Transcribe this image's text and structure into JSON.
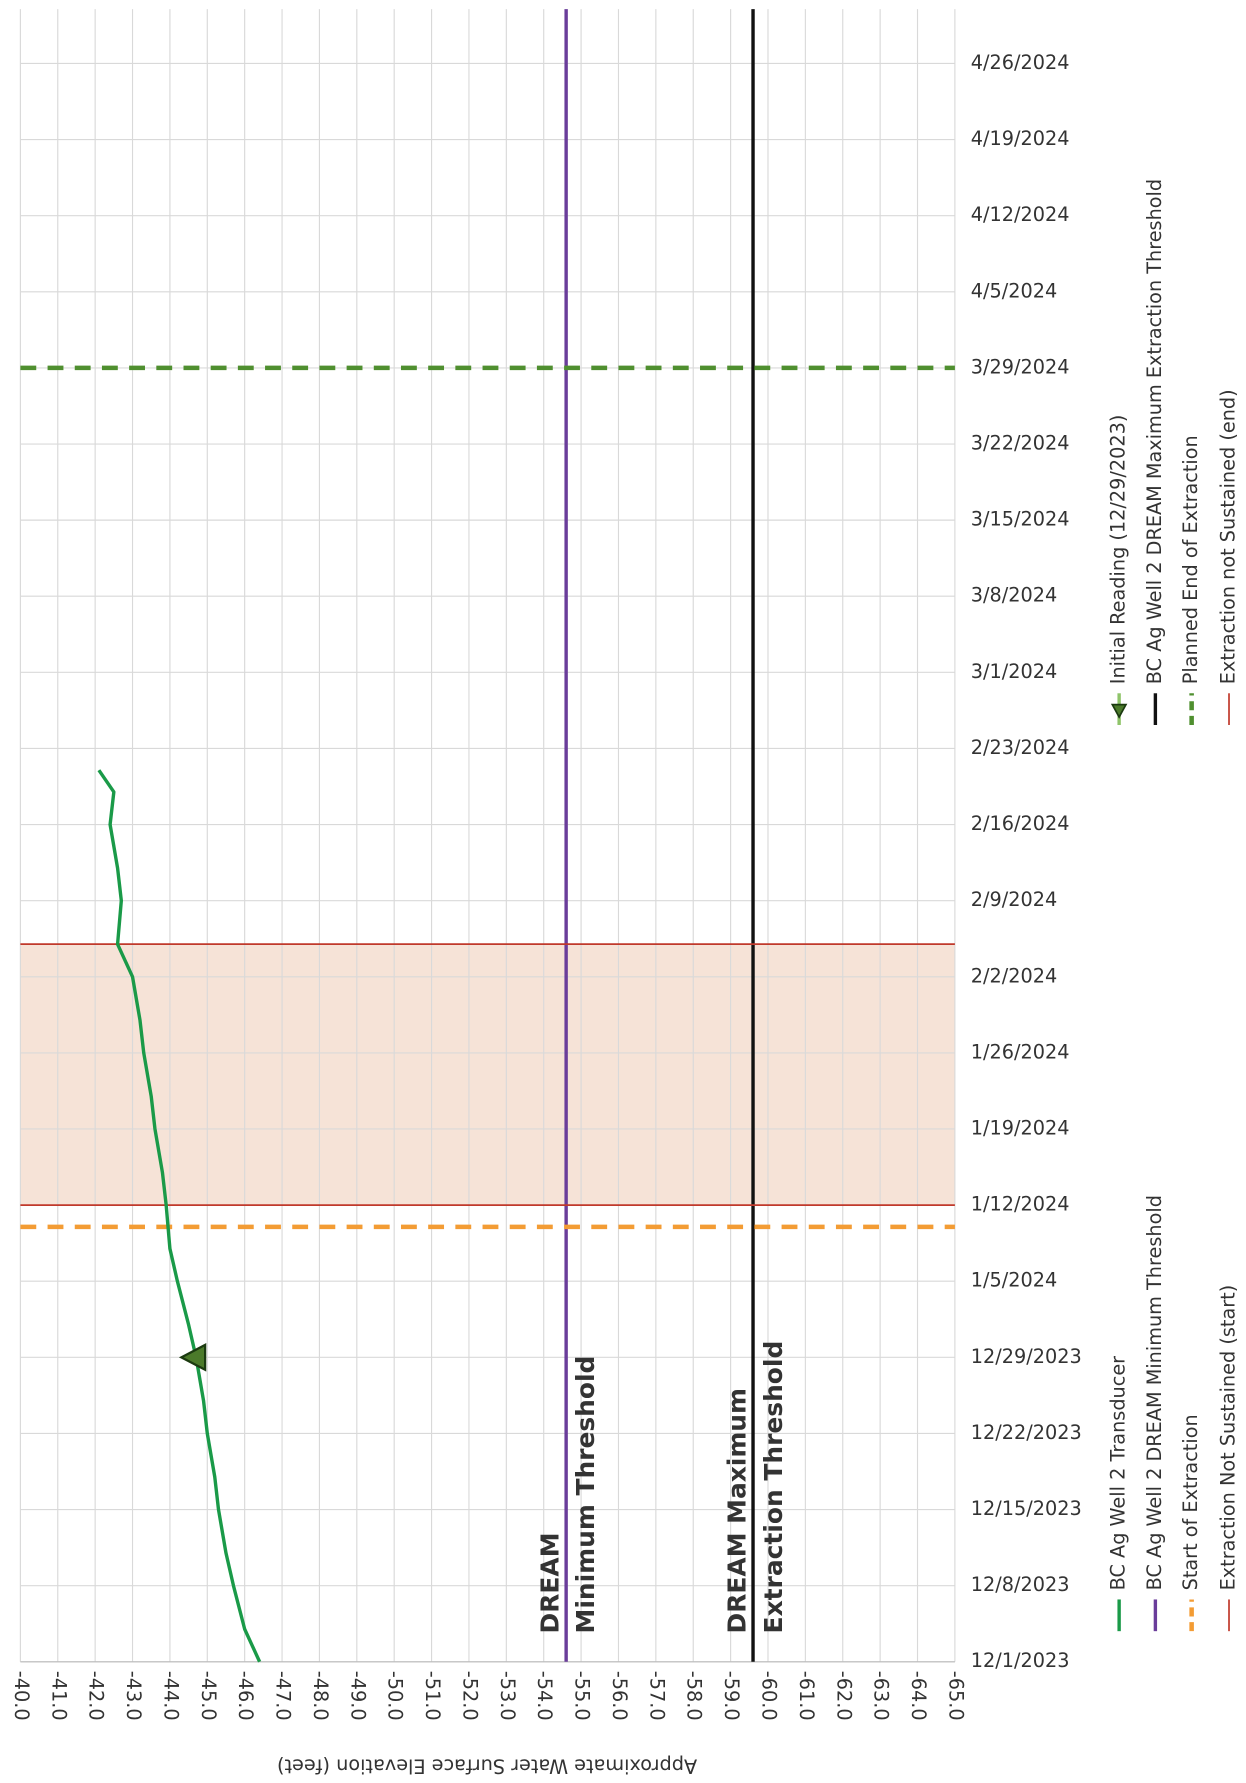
{
  "chart_data": {
    "type": "line",
    "y_label": "Approximate Water Surface Elevation (feet)",
    "xlim": [
      "12/1/2023",
      "5/1/2024"
    ],
    "xticks": [
      "12/1/2023",
      "12/8/2023",
      "12/15/2023",
      "12/22/2023",
      "12/29/2023",
      "1/5/2024",
      "1/12/2024",
      "1/19/2024",
      "1/26/2024",
      "2/2/2024",
      "2/9/2024",
      "2/16/2024",
      "2/23/2024",
      "3/1/2024",
      "3/8/2024",
      "3/15/2024",
      "3/22/2024",
      "3/29/2024",
      "4/5/2024",
      "4/12/2024",
      "4/19/2024",
      "4/26/2024"
    ],
    "ylim": [
      -40,
      -65
    ],
    "yticks": [
      {
        "value": -40,
        "label": "-40.0"
      },
      {
        "value": -41,
        "label": "-41.0"
      },
      {
        "value": -42,
        "label": "-42.0"
      },
      {
        "value": -43,
        "label": "-43.0"
      },
      {
        "value": -44,
        "label": "-44.0"
      },
      {
        "value": -45,
        "label": "-45.0"
      },
      {
        "value": -46,
        "label": "-46.0"
      },
      {
        "value": -47,
        "label": "-47.0"
      },
      {
        "value": -48,
        "label": "-48.0"
      },
      {
        "value": -49,
        "label": "-49.0"
      },
      {
        "value": -50,
        "label": "-50.0"
      },
      {
        "value": -51,
        "label": "-51.0"
      },
      {
        "value": -52,
        "label": "-52.0"
      },
      {
        "value": -53,
        "label": "-53.0"
      },
      {
        "value": -54,
        "label": "-54.0"
      },
      {
        "value": -55,
        "label": "-55.0"
      },
      {
        "value": -56,
        "label": "-56.0"
      },
      {
        "value": -57,
        "label": "-57.0"
      },
      {
        "value": -58,
        "label": "-58.0"
      },
      {
        "value": -59,
        "label": "-59.0"
      },
      {
        "value": -60,
        "label": "-60.0"
      },
      {
        "value": -61,
        "label": "-61.0"
      },
      {
        "value": -62,
        "label": "-62.0"
      },
      {
        "value": -63,
        "label": "-63.0"
      },
      {
        "value": -64,
        "label": "-64.0"
      },
      {
        "value": -65,
        "label": "-65.0"
      }
    ],
    "grid": true,
    "series": [
      {
        "name": "BC Ag Well 2 Transducer",
        "color": "#1a9a48",
        "x": [
          "12/1/2023",
          "12/4/2023",
          "12/8/2023",
          "12/11/2023",
          "12/15/2023",
          "12/18/2023",
          "12/22/2023",
          "12/25/2023",
          "12/29/2023",
          "1/1/2024",
          "1/5/2024",
          "1/8/2024",
          "1/12/2024",
          "1/15/2024",
          "1/19/2024",
          "1/22/2024",
          "1/26/2024",
          "1/29/2024",
          "2/2/2024",
          "2/5/2024",
          "2/9/2024",
          "2/12/2024",
          "2/16/2024",
          "2/19/2024",
          "2/21/2024"
        ],
        "values": [
          -46.4,
          -46.0,
          -45.7,
          -45.5,
          -45.3,
          -45.2,
          -45.0,
          -44.9,
          -44.7,
          -44.5,
          -44.2,
          -44.0,
          -43.9,
          -43.8,
          -43.6,
          -43.5,
          -43.3,
          -43.2,
          -43.0,
          -42.6,
          -42.7,
          -42.6,
          -42.4,
          -42.5,
          -42.1
        ]
      },
      {
        "name": "Initial Reading (12/29/2023)",
        "color": "#4b7a2a",
        "marker": "triangle",
        "x": [
          "12/29/2023"
        ],
        "values": [
          -44.7
        ]
      }
    ],
    "threshold_lines": [
      {
        "name": "BC Ag Well 2 DREAM Minimum Threshold",
        "color": "#6a3d9a",
        "value": -54.6
      },
      {
        "name": "BC Ag Well 2 DREAM Maximum Extraction Threshold",
        "color": "#111111",
        "value": -59.6
      }
    ],
    "date_lines": [
      {
        "name": "Start of Extraction",
        "color": "#f39c34",
        "x": "1/10/2024",
        "dashed": true
      },
      {
        "name": "Planned End of Extraction",
        "color": "#4f8f2f",
        "x": "3/29/2024",
        "dashed": true
      },
      {
        "name": "Extraction Not Sustained (start)",
        "color": "#c0392b",
        "x": "1/12/2024",
        "dashed": false
      },
      {
        "name": "Extraction not Sustained (end)",
        "color": "#c0392b",
        "x": "2/5/2024",
        "dashed": false
      }
    ],
    "shade_color": "#f6e3d7",
    "annotations": [
      {
        "lines": [
          "DREAM",
          "Minimum Threshold"
        ],
        "color": "#6a3d9a"
      },
      {
        "lines": [
          "DREAM Maximum",
          "Extraction Threshold"
        ],
        "color": "#111111"
      }
    ]
  }
}
